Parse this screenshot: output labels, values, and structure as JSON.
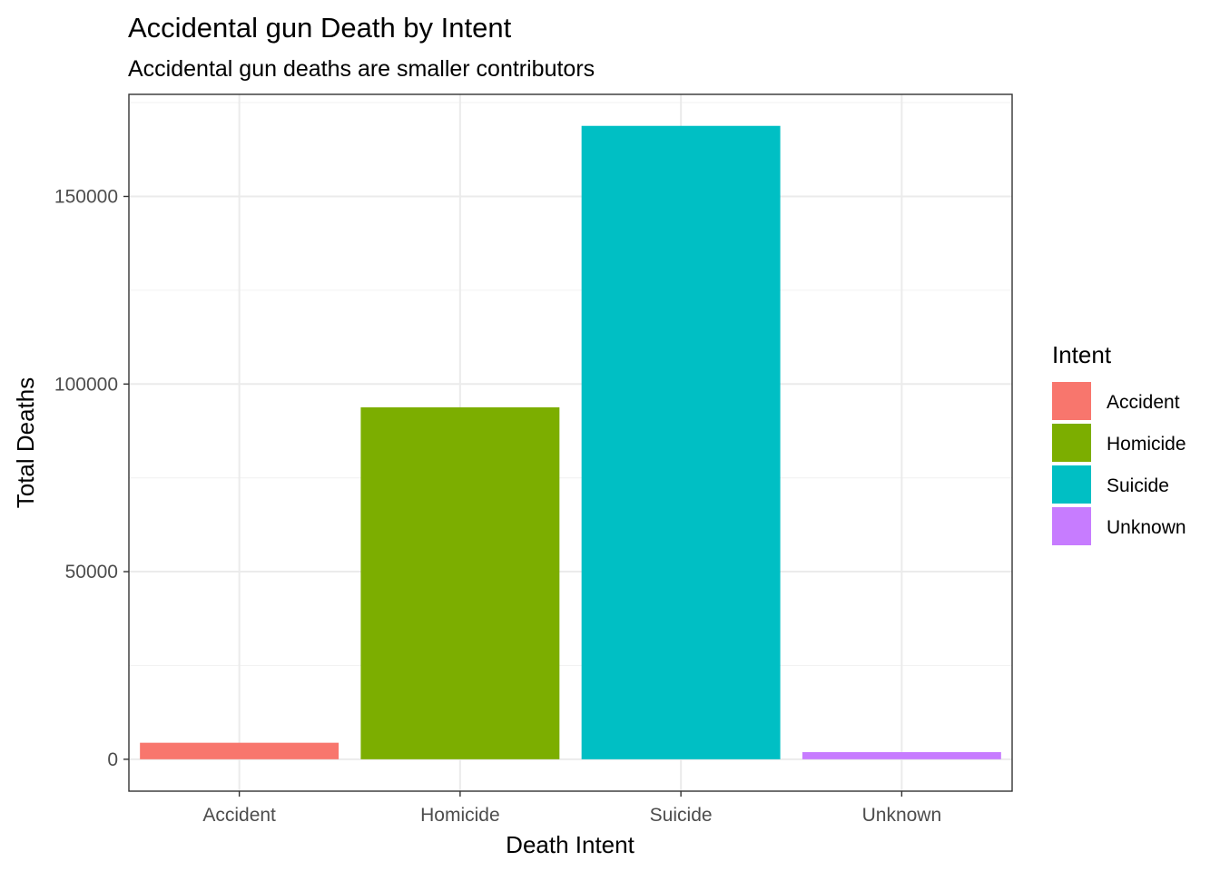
{
  "chart_data": {
    "type": "bar",
    "title": "Accidental gun Death by Intent",
    "subtitle": "Accidental gun deaths are smaller contributors",
    "xlabel": "Death Intent",
    "ylabel": "Total Deaths",
    "categories": [
      "Accident",
      "Homicide",
      "Suicide",
      "Unknown"
    ],
    "values": [
      4400,
      93800,
      168800,
      1900
    ],
    "colors": [
      "#F8766D",
      "#7CAE00",
      "#00BFC4",
      "#C77CFF"
    ],
    "ylim": [
      -8500,
      177200
    ],
    "yticks": [
      0,
      50000,
      100000,
      150000
    ],
    "ytick_labels": [
      "0",
      "50000",
      "100000",
      "150000"
    ],
    "grid": true,
    "legend": {
      "title": "Intent",
      "position": "right",
      "entries": [
        "Accident",
        "Homicide",
        "Suicide",
        "Unknown"
      ]
    }
  }
}
